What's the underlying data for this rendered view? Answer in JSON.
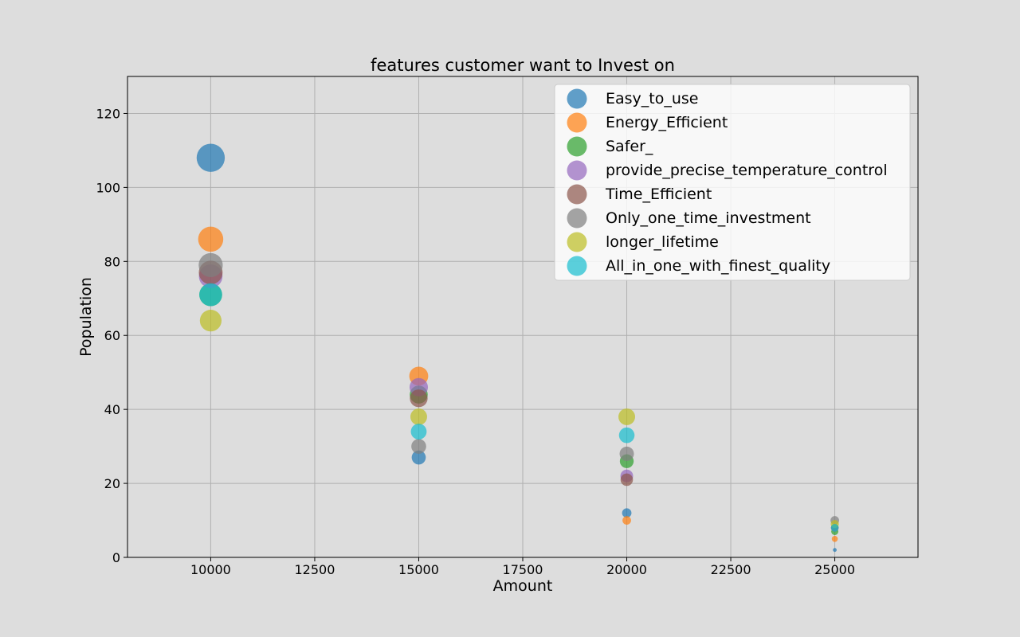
{
  "chart_data": {
    "type": "scatter",
    "title": "features customer want to Invest on",
    "xlabel": "Amount",
    "ylabel": "Population",
    "xlim": [
      8000,
      27000
    ],
    "ylim": [
      0,
      130
    ],
    "xticks": [
      10000,
      12500,
      15000,
      17500,
      20000,
      22500,
      25000
    ],
    "yticks": [
      0,
      20,
      40,
      60,
      80,
      100,
      120
    ],
    "grid": true,
    "legend_position": "top-right",
    "marker_size_encodes": "Population",
    "x": [
      10000,
      15000,
      20000,
      25000
    ],
    "series": [
      {
        "name": "Easy_to_use",
        "color": "#1f77b4",
        "values": [
          108,
          27,
          12,
          2
        ]
      },
      {
        "name": "Energy_Efficient",
        "color": "#ff7f0e",
        "values": [
          86,
          49,
          10,
          5
        ]
      },
      {
        "name": "Safer_",
        "color": "#2ca02c",
        "values": [
          71,
          44,
          26,
          7
        ]
      },
      {
        "name": "provide_precise_temperature_control",
        "color": "#9467bd",
        "values": [
          76,
          46,
          22,
          8
        ]
      },
      {
        "name": "Time_Efficient",
        "color": "#8c564b",
        "values": [
          77,
          43,
          21,
          8
        ]
      },
      {
        "name": "Only_one_time_investment",
        "color": "#7f7f7f",
        "values": [
          79,
          30,
          28,
          10
        ]
      },
      {
        "name": "longer_lifetime",
        "color": "#bcbd22",
        "values": [
          64,
          38,
          38,
          9
        ]
      },
      {
        "name": "All_in_one_with_finest_quality",
        "color": "#17becf",
        "values": [
          71,
          34,
          33,
          8
        ]
      }
    ]
  }
}
